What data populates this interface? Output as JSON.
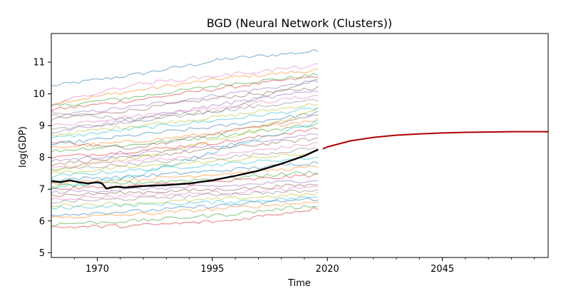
{
  "chart_data": {
    "type": "line",
    "title": "BGD (Neural Network (Clusters))",
    "xlabel": "Time",
    "ylabel": "log(GDP)",
    "xlim": [
      1960,
      2068
    ],
    "ylim": [
      4.85,
      11.9
    ],
    "x_ticks": [
      1970,
      1995,
      2020,
      2045
    ],
    "x_tick_labels": [
      "1970",
      "1995",
      "2020",
      "2045"
    ],
    "y_ticks": [
      5,
      6,
      7,
      8,
      9,
      10,
      11
    ],
    "y_tick_labels": [
      "5",
      "6",
      "7",
      "8",
      "9",
      "10",
      "11"
    ],
    "grid": false,
    "legend": "none",
    "history_years": [
      1960,
      2018
    ],
    "forecast_years": [
      2019,
      2068
    ],
    "series": [
      {
        "role": "highlighted",
        "color": "#000000",
        "x": [
          1960,
          1962,
          1964,
          1966,
          1968,
          1970,
          1971,
          1972,
          1974,
          1976,
          1980,
          1985,
          1990,
          1995,
          2000,
          2005,
          2010,
          2015,
          2018
        ],
        "values": [
          7.25,
          7.22,
          7.28,
          7.22,
          7.18,
          7.22,
          7.18,
          7.02,
          7.08,
          7.05,
          7.1,
          7.13,
          7.18,
          7.28,
          7.42,
          7.58,
          7.8,
          8.05,
          8.25
        ]
      },
      {
        "role": "forecast",
        "color": "#b00000",
        "x": [
          2019,
          2020,
          2025,
          2030,
          2035,
          2040,
          2045,
          2050,
          2055,
          2060,
          2068
        ],
        "values": [
          8.27,
          8.33,
          8.52,
          8.63,
          8.7,
          8.74,
          8.77,
          8.79,
          8.8,
          8.81,
          8.81
        ]
      }
    ],
    "background_series": {
      "color_cycle": [
        "#1f77b4",
        "#ff7f0e",
        "#2ca02c",
        "#d62728",
        "#9467bd",
        "#8c564b",
        "#e377c2",
        "#7f7f7f",
        "#bcbd22",
        "#17becf"
      ],
      "x": [
        1960,
        1978,
        1998,
        2018
      ],
      "values": [
        [
          10.25,
          10.6,
          11.1,
          11.35
        ],
        [
          9.7,
          10.1,
          10.5,
          10.75
        ],
        [
          9.6,
          9.9,
          10.3,
          10.6
        ],
        [
          9.5,
          9.8,
          10.2,
          10.55
        ],
        [
          9.3,
          9.6,
          10.0,
          10.4
        ],
        [
          9.2,
          9.5,
          9.9,
          10.2
        ],
        [
          9.0,
          9.3,
          9.6,
          9.95
        ],
        [
          8.9,
          9.1,
          9.5,
          9.8
        ],
        [
          8.7,
          9.0,
          9.3,
          9.7
        ],
        [
          8.6,
          8.9,
          9.2,
          9.55
        ],
        [
          8.4,
          8.7,
          9.0,
          9.4
        ],
        [
          8.3,
          8.5,
          8.8,
          9.2
        ],
        [
          8.2,
          8.4,
          8.7,
          9.05
        ],
        [
          8.0,
          8.2,
          8.5,
          8.9
        ],
        [
          7.9,
          8.1,
          8.4,
          8.75
        ],
        [
          7.8,
          8.0,
          8.3,
          8.6
        ],
        [
          7.7,
          7.9,
          8.1,
          8.45
        ],
        [
          7.6,
          7.8,
          8.0,
          8.3
        ],
        [
          7.5,
          7.7,
          7.9,
          8.15
        ],
        [
          7.4,
          7.6,
          7.8,
          8.0
        ],
        [
          7.3,
          7.4,
          7.6,
          7.85
        ],
        [
          7.2,
          7.3,
          7.5,
          7.7
        ],
        [
          7.1,
          7.2,
          7.35,
          7.55
        ],
        [
          7.0,
          7.1,
          7.25,
          7.45
        ],
        [
          6.9,
          7.0,
          7.1,
          7.3
        ],
        [
          6.8,
          6.9,
          7.0,
          7.15
        ],
        [
          6.7,
          6.8,
          6.9,
          7.05
        ],
        [
          6.6,
          6.7,
          6.85,
          6.95
        ],
        [
          6.5,
          6.55,
          6.7,
          6.85
        ],
        [
          6.4,
          6.5,
          6.6,
          6.75
        ],
        [
          6.2,
          6.3,
          6.5,
          6.7
        ],
        [
          6.1,
          6.2,
          6.4,
          6.6
        ],
        [
          5.9,
          6.0,
          6.2,
          6.5
        ],
        [
          5.8,
          5.85,
          6.0,
          6.4
        ],
        [
          8.8,
          9.2,
          9.7,
          10.1
        ],
        [
          8.5,
          8.3,
          8.8,
          9.3
        ],
        [
          9.7,
          10.3,
          10.6,
          10.9
        ],
        [
          9.4,
          9.2,
          9.5,
          10.5
        ],
        [
          7.6,
          8.0,
          8.6,
          9.5
        ],
        [
          7.0,
          7.4,
          8.3,
          9.1
        ]
      ]
    }
  }
}
